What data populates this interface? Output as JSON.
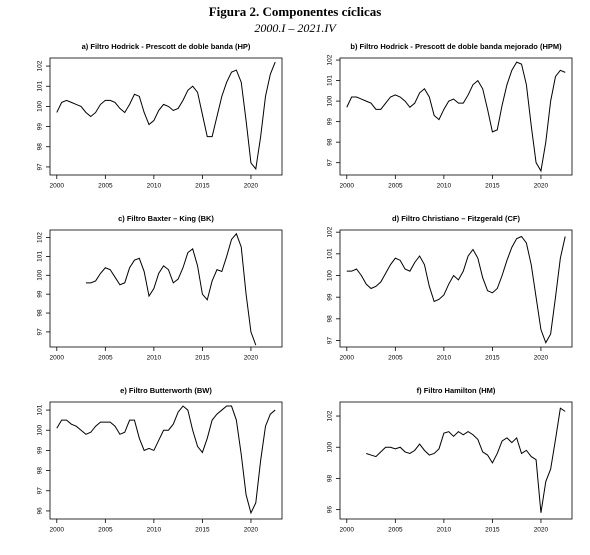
{
  "title": "Figura 2. Componentes cíclicas",
  "subtitle": "2000.I – 2021.IV",
  "chart_data": [
    {
      "type": "line",
      "title": "a) Filtro Hodrick - Prescott de doble banda (HP)",
      "color": "#000000",
      "x": [
        2000,
        2000.5,
        2001,
        2001.5,
        2002,
        2002.5,
        2003,
        2003.5,
        2004,
        2004.5,
        2005,
        2005.5,
        2006,
        2006.5,
        2007,
        2007.5,
        2008,
        2008.5,
        2009,
        2009.5,
        2010,
        2010.5,
        2011,
        2011.5,
        2012,
        2012.5,
        2013,
        2013.5,
        2014,
        2014.5,
        2015,
        2015.5,
        2016,
        2016.5,
        2017,
        2017.5,
        2018,
        2018.5,
        2019,
        2019.5,
        2020,
        2020.5,
        2021,
        2021.5,
        2022,
        2022.5
      ],
      "values": [
        99.7,
        100.2,
        100.3,
        100.2,
        100.1,
        100.0,
        99.7,
        99.5,
        99.7,
        100.1,
        100.3,
        100.3,
        100.2,
        99.9,
        99.7,
        100.1,
        100.6,
        100.5,
        99.7,
        99.1,
        99.3,
        99.8,
        100.1,
        100.0,
        99.8,
        99.9,
        100.3,
        100.8,
        101.0,
        100.7,
        99.6,
        98.5,
        98.5,
        99.5,
        100.5,
        101.2,
        101.7,
        101.8,
        101.2,
        99.3,
        97.2,
        96.9,
        98.5,
        100.5,
        101.6,
        102.2
      ],
      "xlim": [
        1999.3,
        2023.2
      ],
      "xticks": [
        2000,
        2005,
        2010,
        2015,
        2020
      ],
      "ylim": [
        96.6,
        102.4
      ],
      "yticks": [
        97,
        98,
        99,
        100,
        101,
        102
      ]
    },
    {
      "type": "line",
      "title": "b) Filtro Hodrick - Prescott de doble banda mejorado (HPM)",
      "color": "#000000",
      "x": [
        2000,
        2000.5,
        2001,
        2001.5,
        2002,
        2002.5,
        2003,
        2003.5,
        2004,
        2004.5,
        2005,
        2005.5,
        2006,
        2006.5,
        2007,
        2007.5,
        2008,
        2008.5,
        2009,
        2009.5,
        2010,
        2010.5,
        2011,
        2011.5,
        2012,
        2012.5,
        2013,
        2013.5,
        2014,
        2014.5,
        2015,
        2015.5,
        2016,
        2016.5,
        2017,
        2017.5,
        2018,
        2018.5,
        2019,
        2019.5,
        2020,
        2020.5,
        2021,
        2021.5,
        2022,
        2022.5
      ],
      "values": [
        99.7,
        100.2,
        100.2,
        100.1,
        100.0,
        99.9,
        99.6,
        99.6,
        99.9,
        100.2,
        100.3,
        100.2,
        100.0,
        99.7,
        99.9,
        100.4,
        100.6,
        100.2,
        99.3,
        99.1,
        99.6,
        100.0,
        100.1,
        99.9,
        99.9,
        100.3,
        100.8,
        101.0,
        100.6,
        99.6,
        98.5,
        98.6,
        99.8,
        100.8,
        101.5,
        101.9,
        101.8,
        100.8,
        98.8,
        97.0,
        96.6,
        98.0,
        100.0,
        101.2,
        101.5,
        101.4
      ],
      "xlim": [
        1999.3,
        2023.2
      ],
      "xticks": [
        2000,
        2005,
        2010,
        2015,
        2020
      ],
      "ylim": [
        96.4,
        102.1
      ],
      "yticks": [
        97,
        98,
        99,
        100,
        101,
        102
      ]
    },
    {
      "type": "line",
      "title": "c) Filtro Baxter – King (BK)",
      "color": "#000000",
      "x": [
        2003,
        2003.5,
        2004,
        2004.5,
        2005,
        2005.5,
        2006,
        2006.5,
        2007,
        2007.5,
        2008,
        2008.5,
        2009,
        2009.5,
        2010,
        2010.5,
        2011,
        2011.5,
        2012,
        2012.5,
        2013,
        2013.5,
        2014,
        2014.5,
        2015,
        2015.5,
        2016,
        2016.5,
        2017,
        2017.5,
        2018,
        2018.5,
        2019,
        2019.5,
        2020,
        2020.5
      ],
      "values": [
        99.6,
        99.6,
        99.7,
        100.1,
        100.4,
        100.3,
        99.9,
        99.5,
        99.6,
        100.4,
        100.8,
        100.9,
        100.2,
        98.9,
        99.3,
        100.1,
        100.5,
        100.3,
        99.6,
        99.8,
        100.4,
        101.2,
        101.4,
        100.5,
        99.0,
        98.7,
        99.7,
        100.3,
        100.2,
        101.0,
        101.9,
        102.2,
        101.5,
        99.0,
        97.0,
        96.3
      ],
      "xlim": [
        1999.3,
        2023.2
      ],
      "xticks": [
        2000,
        2005,
        2010,
        2015,
        2020
      ],
      "ylim": [
        96.2,
        102.4
      ],
      "yticks": [
        97,
        98,
        99,
        100,
        101,
        102
      ]
    },
    {
      "type": "line",
      "title": "d) Filtro Christiano – Fitzgerald (CF)",
      "color": "#000000",
      "x": [
        2000,
        2000.5,
        2001,
        2001.5,
        2002,
        2002.5,
        2003,
        2003.5,
        2004,
        2004.5,
        2005,
        2005.5,
        2006,
        2006.5,
        2007,
        2007.5,
        2008,
        2008.5,
        2009,
        2009.5,
        2010,
        2010.5,
        2011,
        2011.5,
        2012,
        2012.5,
        2013,
        2013.5,
        2014,
        2014.5,
        2015,
        2015.5,
        2016,
        2016.5,
        2017,
        2017.5,
        2018,
        2018.5,
        2019,
        2019.5,
        2020,
        2020.5,
        2021,
        2021.5,
        2022,
        2022.5
      ],
      "values": [
        100.2,
        100.2,
        100.3,
        100.0,
        99.6,
        99.4,
        99.5,
        99.7,
        100.1,
        100.5,
        100.8,
        100.7,
        100.3,
        100.2,
        100.6,
        100.9,
        100.5,
        99.5,
        98.8,
        98.9,
        99.1,
        99.6,
        100.0,
        99.8,
        100.2,
        100.9,
        101.2,
        100.8,
        99.9,
        99.3,
        99.2,
        99.4,
        100.0,
        100.7,
        101.3,
        101.7,
        101.8,
        101.5,
        100.5,
        99.0,
        97.5,
        96.9,
        97.3,
        99.0,
        100.8,
        101.8
      ],
      "xlim": [
        1999.3,
        2023.2
      ],
      "xticks": [
        2000,
        2005,
        2010,
        2015,
        2020
      ],
      "ylim": [
        96.7,
        102.1
      ],
      "yticks": [
        97,
        98,
        99,
        100,
        101,
        102
      ]
    },
    {
      "type": "line",
      "title": "e) Filtro Butterworth (BW)",
      "color": "#000000",
      "x": [
        2000,
        2000.5,
        2001,
        2001.5,
        2002,
        2002.5,
        2003,
        2003.5,
        2004,
        2004.5,
        2005,
        2005.5,
        2006,
        2006.5,
        2007,
        2007.5,
        2008,
        2008.5,
        2009,
        2009.5,
        2010,
        2010.5,
        2011,
        2011.5,
        2012,
        2012.5,
        2013,
        2013.5,
        2014,
        2014.5,
        2015,
        2015.5,
        2016,
        2016.5,
        2017,
        2017.5,
        2018,
        2018.5,
        2019,
        2019.5,
        2020,
        2020.5,
        2021,
        2021.5,
        2022,
        2022.5
      ],
      "values": [
        100.1,
        100.5,
        100.5,
        100.3,
        100.2,
        100.0,
        99.8,
        99.9,
        100.2,
        100.4,
        100.4,
        100.4,
        100.2,
        99.8,
        99.9,
        100.5,
        100.5,
        99.6,
        99.0,
        99.1,
        99.0,
        99.5,
        100.0,
        100.0,
        100.3,
        100.9,
        101.2,
        101.0,
        100.0,
        99.2,
        98.9,
        99.6,
        100.5,
        100.8,
        101.0,
        101.2,
        101.2,
        100.5,
        98.8,
        96.8,
        95.9,
        96.4,
        98.5,
        100.2,
        100.8,
        101.0
      ],
      "xlim": [
        1999.3,
        2023.2
      ],
      "xticks": [
        2000,
        2005,
        2010,
        2015,
        2020
      ],
      "ylim": [
        95.6,
        101.4
      ],
      "yticks": [
        96,
        97,
        98,
        99,
        100,
        101
      ]
    },
    {
      "type": "line",
      "title": "f) Filtro Hamilton (HM)",
      "color": "#000000",
      "x": [
        2002,
        2002.5,
        2003,
        2003.5,
        2004,
        2004.5,
        2005,
        2005.5,
        2006,
        2006.5,
        2007,
        2007.5,
        2008,
        2008.5,
        2009,
        2009.5,
        2010,
        2010.5,
        2011,
        2011.5,
        2012,
        2012.5,
        2013,
        2013.5,
        2014,
        2014.5,
        2015,
        2015.5,
        2016,
        2016.5,
        2017,
        2017.5,
        2018,
        2018.5,
        2019,
        2019.5,
        2020,
        2020.5,
        2021,
        2021.5,
        2022,
        2022.5
      ],
      "values": [
        99.6,
        99.5,
        99.4,
        99.7,
        100.0,
        100.0,
        99.9,
        100.0,
        99.7,
        99.6,
        99.8,
        100.2,
        99.8,
        99.5,
        99.6,
        99.9,
        100.9,
        101.0,
        100.7,
        101.0,
        100.8,
        101.0,
        100.8,
        100.5,
        99.7,
        99.5,
        99.0,
        99.6,
        100.4,
        100.6,
        100.3,
        100.6,
        99.6,
        99.8,
        99.4,
        99.2,
        95.8,
        97.8,
        98.6,
        100.5,
        102.5,
        102.3
      ],
      "xlim": [
        1999.3,
        2023.2
      ],
      "xticks": [
        2000,
        2005,
        2010,
        2015,
        2020
      ],
      "ylim": [
        95.4,
        102.9
      ],
      "yticks": [
        96,
        98,
        100,
        102
      ]
    }
  ]
}
